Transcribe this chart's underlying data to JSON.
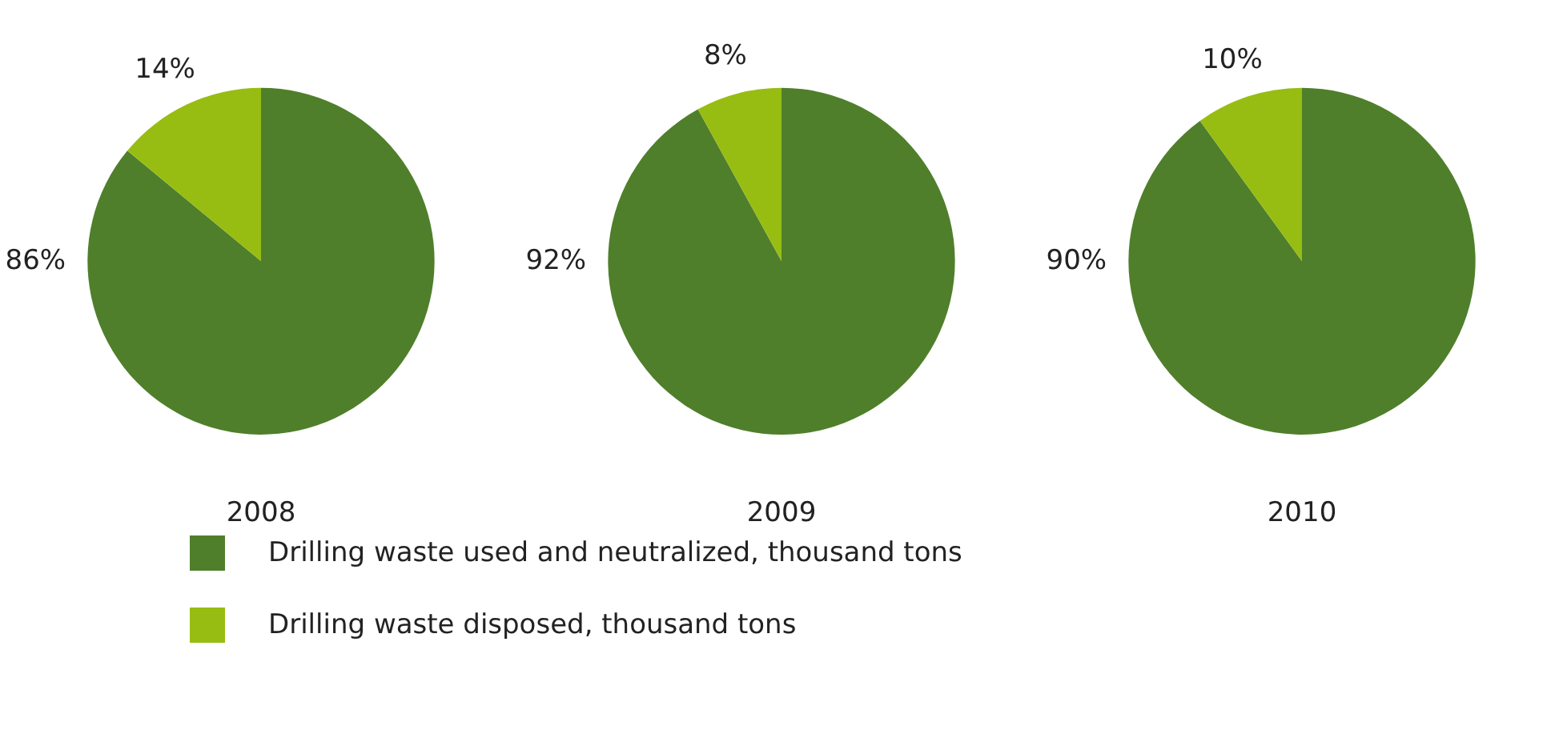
{
  "chart_data": [
    {
      "type": "pie",
      "title": "2008",
      "categories": [
        "Drilling waste used and neutralized, thousand tons",
        "Drilling waste disposed, thousand tons"
      ],
      "values": [
        86,
        14
      ],
      "colors": [
        "#4f7f2b",
        "#97bd12"
      ],
      "value_labels": [
        "86%",
        "14%"
      ],
      "legend": "bottom"
    },
    {
      "type": "pie",
      "title": "2009",
      "categories": [
        null,
        null
      ],
      "values": [
        92,
        8
      ],
      "colors": [
        "#4f7f2b",
        "#97bd12"
      ],
      "value_labels": [
        "92%",
        "8%"
      ]
    },
    {
      "type": "pie",
      "title": "2010",
      "categories": [
        null,
        null
      ],
      "values": [
        90,
        10
      ],
      "colors": [
        "#4f7f2b",
        "#97bd12"
      ],
      "value_labels": [
        "90%",
        "10%"
      ]
    }
  ]
}
